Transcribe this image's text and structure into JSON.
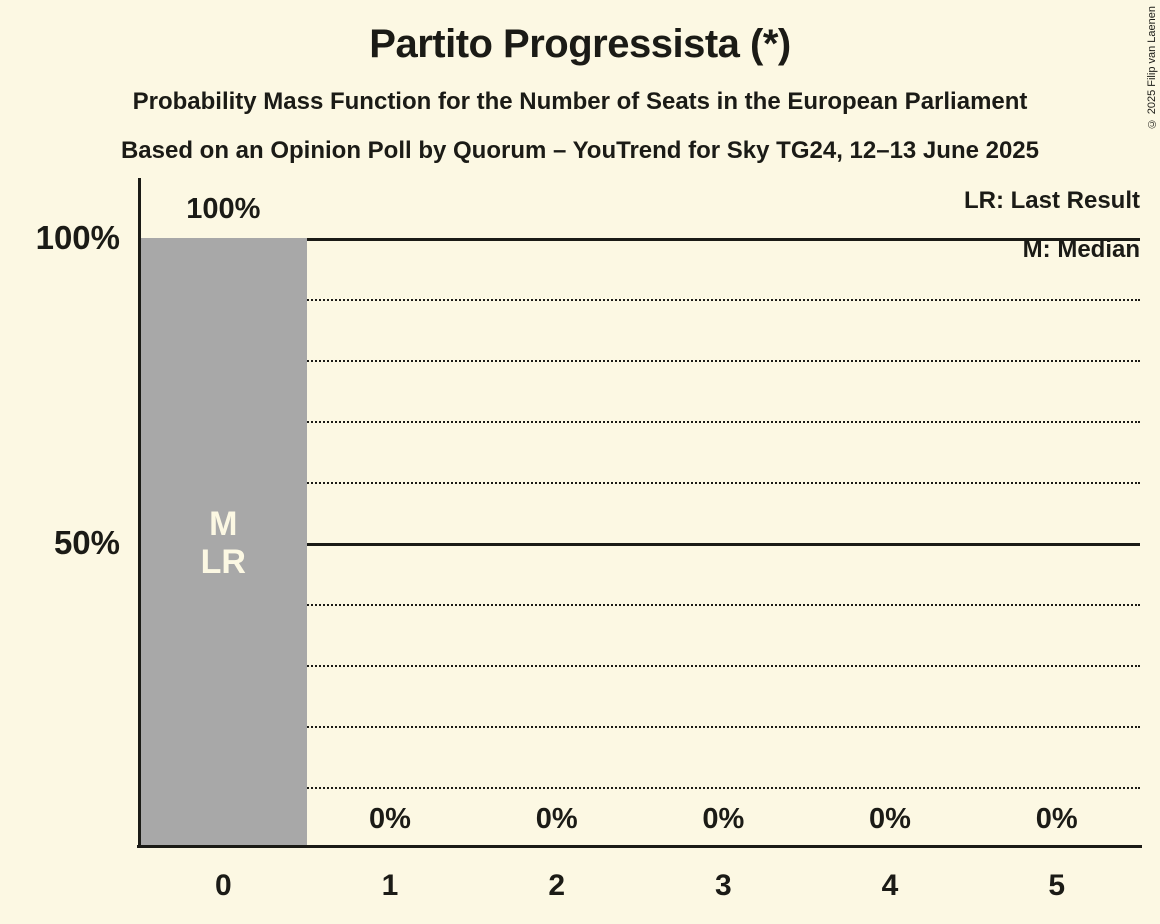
{
  "title": "Partito Progressista (*)",
  "subtitle1": "Probability Mass Function for the Number of Seats in the European Parliament",
  "subtitle2": "Based on an Opinion Poll by Quorum – YouTrend for Sky TG24, 12–13 June 2025",
  "copyright": "© 2025 Filip van Laenen",
  "legend": {
    "lr": "LR: Last Result",
    "m": "M: Median"
  },
  "colors": {
    "background": "#FCF8E3",
    "bar": "#A8A8A8",
    "text": "#1B1B16",
    "bar_label": "#FCF8E3"
  },
  "chart_data": {
    "type": "bar",
    "title": "Partito Progressista (*)",
    "categories": [
      "0",
      "1",
      "2",
      "3",
      "4",
      "5"
    ],
    "values": [
      100,
      0,
      0,
      0,
      0,
      0
    ],
    "value_labels": [
      "100%",
      "0%",
      "0%",
      "0%",
      "0%",
      "0%"
    ],
    "bar_annotations": [
      {
        "category_index": 0,
        "lines": [
          "M",
          "LR"
        ]
      }
    ],
    "y_ticks": [
      {
        "label": "100%",
        "value": 100
      },
      {
        "label": "50%",
        "value": 50
      }
    ],
    "gridlines_solid": [
      100,
      50
    ],
    "gridlines_dotted": [
      90,
      80,
      70,
      60,
      40,
      30,
      20,
      10
    ],
    "ylim": [
      0,
      100
    ],
    "xlabel": "",
    "ylabel": "",
    "legend_position": "top-right",
    "grid": true
  }
}
